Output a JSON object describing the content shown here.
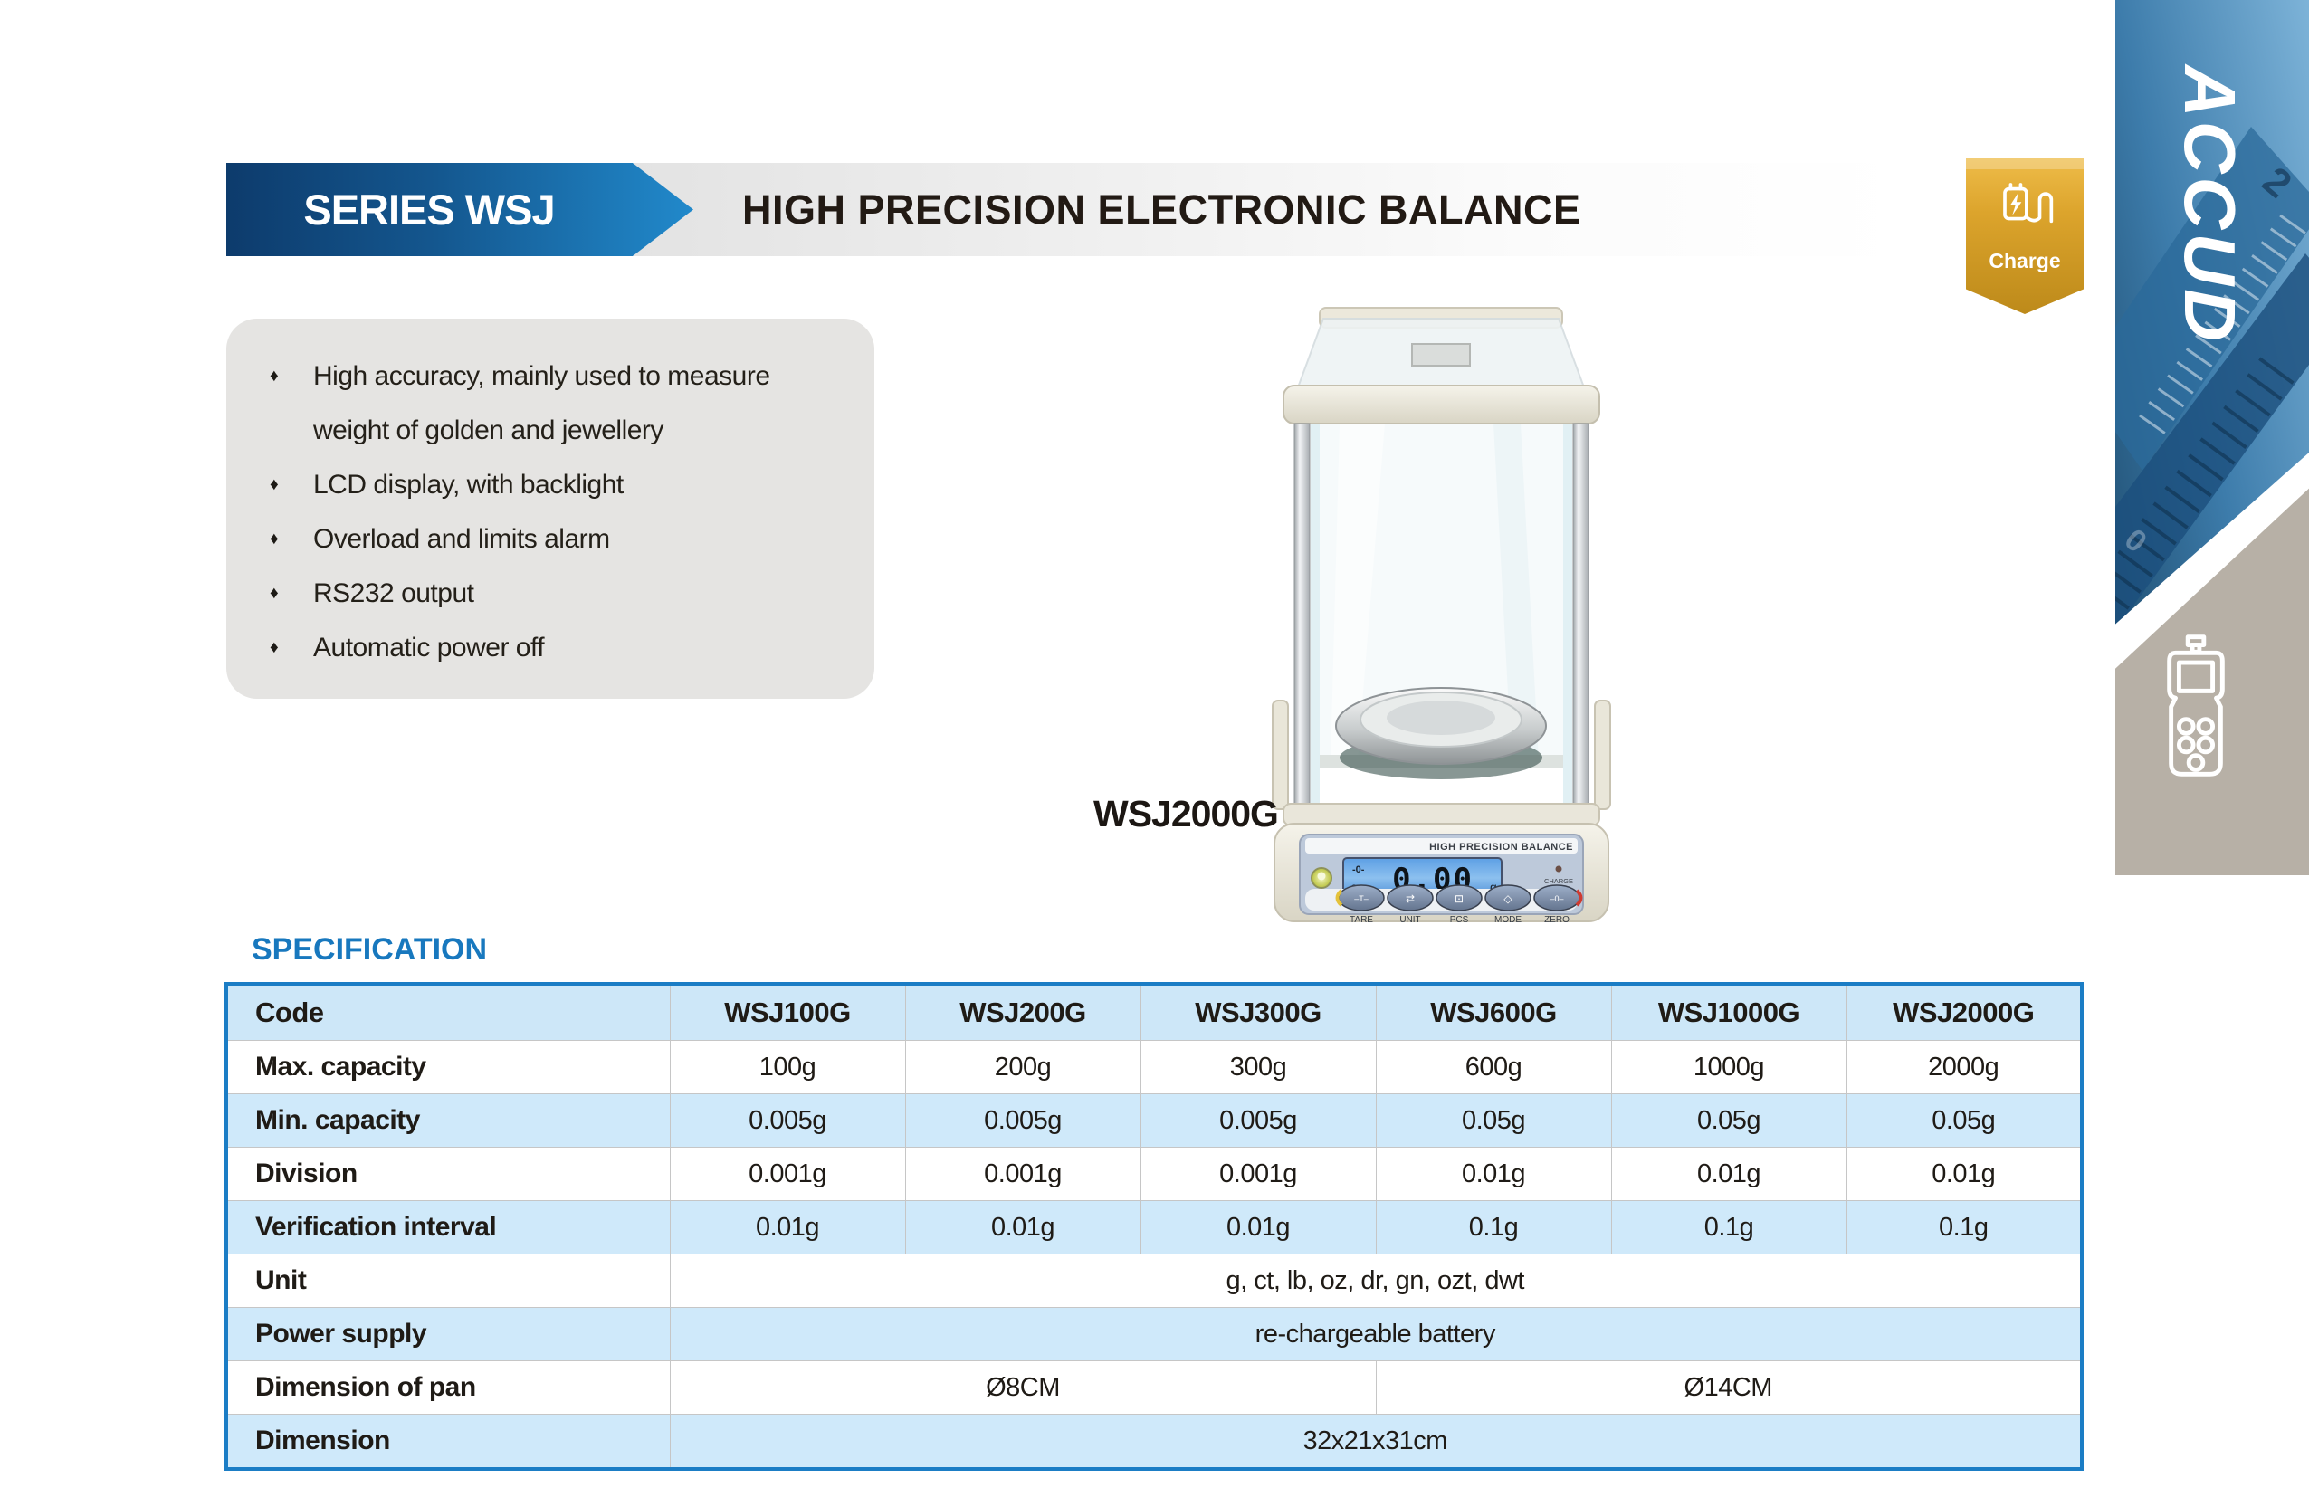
{
  "header": {
    "series": "SERIES WSJ",
    "title": "HIGH PRECISION ELECTRONIC BALANCE"
  },
  "charge_badge": {
    "label": "Charge"
  },
  "brand": {
    "logo_text": "ACCUD"
  },
  "features": {
    "items": [
      "High accuracy, mainly used to measure weight of golden and jewellery",
      "LCD display, with backlight",
      "Overload and limits alarm",
      "RS232 output",
      "Automatic power off"
    ]
  },
  "product": {
    "model": "WSJ2000G",
    "panel_title": "HIGH PRECISION BALANCE",
    "display_value": "0.00",
    "display_unit": "g",
    "display_indicators": [
      "-0-",
      "○"
    ],
    "charge_indicator": "CHARGE",
    "buttons": [
      {
        "label": "TARE",
        "glyph": "–T–"
      },
      {
        "label": "UNIT",
        "glyph": "⇄"
      },
      {
        "label": "PCS",
        "glyph": "⊡"
      },
      {
        "label": "MODE",
        "glyph": "◇"
      },
      {
        "label": "ZERO",
        "glyph": "–0–"
      }
    ]
  },
  "specification": {
    "heading": "SPECIFICATION",
    "columns": [
      "Code",
      "WSJ100G",
      "WSJ200G",
      "WSJ300G",
      "WSJ600G",
      "WSJ1000G",
      "WSJ2000G"
    ],
    "rows": [
      {
        "label": "Max. capacity",
        "values": [
          "100g",
          "200g",
          "300g",
          "600g",
          "1000g",
          "2000g"
        ]
      },
      {
        "label": "Min. capacity",
        "values": [
          "0.005g",
          "0.005g",
          "0.005g",
          "0.05g",
          "0.05g",
          "0.05g"
        ]
      },
      {
        "label": "Division",
        "values": [
          "0.001g",
          "0.001g",
          "0.001g",
          "0.01g",
          "0.01g",
          "0.01g"
        ]
      },
      {
        "label": "Verification interval",
        "values": [
          "0.01g",
          "0.01g",
          "0.01g",
          "0.1g",
          "0.1g",
          "0.1g"
        ]
      },
      {
        "label": "Unit",
        "span_all": "g, ct, lb, oz, dr, gn, ozt, dwt"
      },
      {
        "label": "Power supply",
        "span_all": "re-chargeable battery"
      },
      {
        "label": "Dimension of pan",
        "span_half": [
          "Ø8CM",
          "Ø14CM"
        ]
      },
      {
        "label": "Dimension",
        "span_all": "32x21x31cm"
      }
    ]
  },
  "colors": {
    "accent_blue": "#1b7dc5",
    "banner_navy": "#0d3b6c",
    "banner_blue": "#2189cb",
    "table_row_blue": "#cfe9fa",
    "badge_gold": "#dca42c",
    "side_gray": "#b7b0a6",
    "title_text": "#221a14"
  }
}
